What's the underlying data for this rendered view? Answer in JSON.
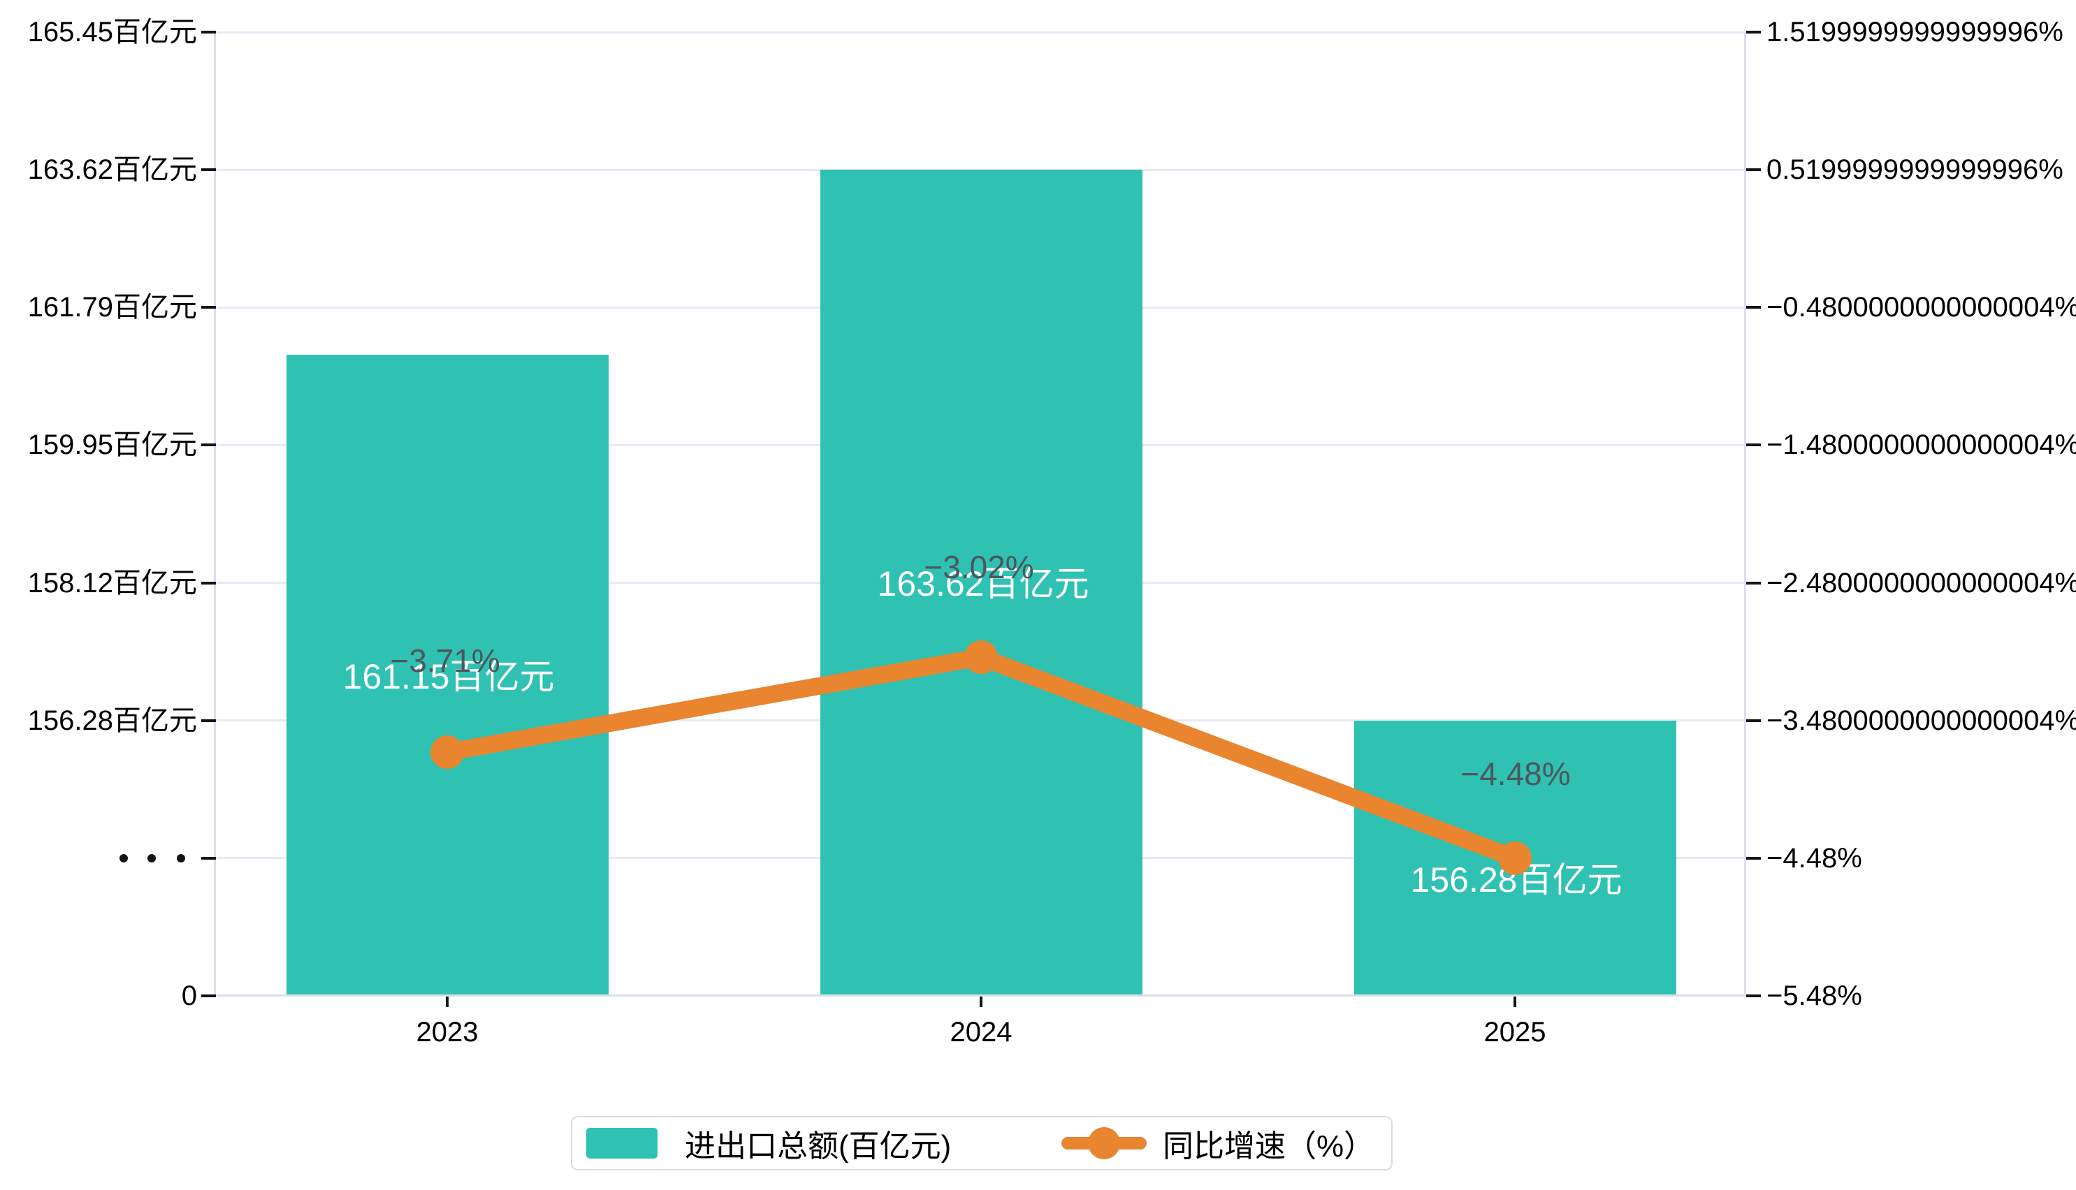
{
  "chart_data": {
    "type": "combo",
    "categories": [
      "2023",
      "2024",
      "2025"
    ],
    "series": [
      {
        "name": "进出口总额(百亿元)",
        "type": "bar",
        "unit": "百亿元",
        "color": "#2FC1B2",
        "values": [
          161.15,
          163.62,
          156.28
        ],
        "data_labels": [
          "161.15百亿元",
          "163.62百亿元",
          "156.28百亿元"
        ]
      },
      {
        "name": "同比增速（%）",
        "type": "line",
        "unit": "%",
        "color": "#E9852F",
        "values": [
          -3.71,
          -3.02,
          -4.48
        ],
        "data_labels": [
          "−3.71%",
          "−3.02%",
          "−4.48%"
        ]
      }
    ],
    "left_axis": {
      "tick_values": [
        165.45,
        163.62,
        161.79,
        159.95,
        158.12,
        156.28
      ],
      "tick_labels": [
        "165.45百亿元",
        "163.62百亿元",
        "161.79百亿元",
        "159.95百亿元",
        "158.12百亿元",
        "156.28百亿元"
      ],
      "has_axis_break": true,
      "origin_label": "0"
    },
    "right_axis": {
      "tick_values": [
        1.52,
        0.52,
        -0.48,
        -1.48,
        -2.48,
        -3.48,
        -4.48,
        -5.48
      ],
      "tick_labels": [
        "1.5199999999999996%",
        "0.5199999999999996%",
        "−0.4800000000000004%",
        "−1.4800000000000004%",
        "−2.4800000000000004%",
        "−3.4800000000000004%",
        "−4.48%",
        "−5.48%"
      ]
    },
    "legend_position": "bottom",
    "grid": true,
    "colors": {
      "bar": "#2FC1B2",
      "line": "#E9852F",
      "gridline": "#E6EAF4",
      "axis_line": "#DADFEE",
      "tick": "#141414",
      "value_label": "#ffffff",
      "growth_label": "#4D575C"
    }
  }
}
